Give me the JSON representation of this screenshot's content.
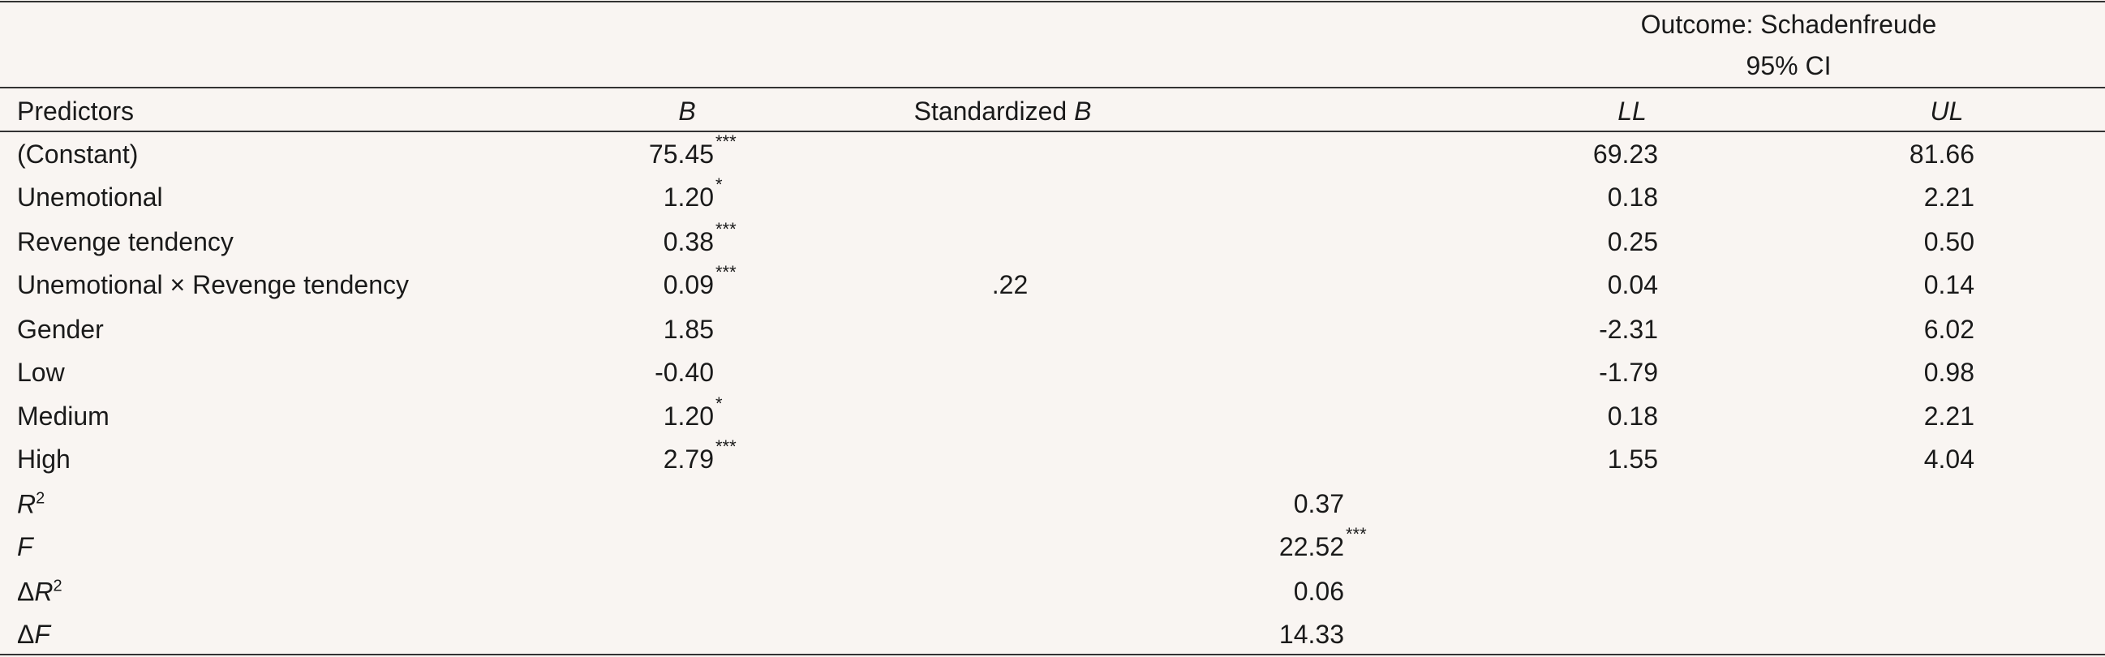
{
  "header": {
    "outcome": "Outcome: Schadenfreude",
    "ci": "95% CI",
    "columns": {
      "predictors": "Predictors",
      "b": "B",
      "std_label": "Standardized",
      "std_symbol": "B",
      "ll": "LL",
      "ul": "UL"
    }
  },
  "rows": [
    {
      "predictor": "(Constant)",
      "b": "75.45",
      "b_sig": "***",
      "ll": "69.23",
      "ul": "81.66"
    },
    {
      "predictor": "Unemotional",
      "b": "1.20",
      "b_sig": "*",
      "ll": "0.18",
      "ul": "2.21"
    },
    {
      "predictor": "Revenge tendency",
      "b": "0.38",
      "b_sig": "***",
      "ll": "0.25",
      "ul": "0.50"
    },
    {
      "predictor": "Unemotional × Revenge tendency",
      "b": "0.09",
      "b_sig": "***",
      "std_b": ".22",
      "ll": "0.04",
      "ul": "0.14"
    },
    {
      "predictor": "Gender",
      "b": "1.85",
      "ll": "-2.31",
      "ul": "6.02"
    },
    {
      "predictor": "Low",
      "b": "-0.40",
      "ll": "-1.79",
      "ul": "0.98"
    },
    {
      "predictor": "Medium",
      "b": "1.20",
      "b_sig": "*",
      "ll": "0.18",
      "ul": "2.21"
    },
    {
      "predictor": "High",
      "b": "2.79",
      "b_sig": "***",
      "ll": "1.55",
      "ul": "4.04"
    }
  ],
  "fit": [
    {
      "symbol": "R",
      "sup": "2",
      "value": "0.37"
    },
    {
      "symbol": "F",
      "value": "22.52",
      "sig": "***"
    },
    {
      "prefix": "Δ",
      "symbol": "R",
      "sup": "2",
      "value": "0.06"
    },
    {
      "prefix": "Δ",
      "symbol": "F",
      "value": "14.33"
    }
  ]
}
